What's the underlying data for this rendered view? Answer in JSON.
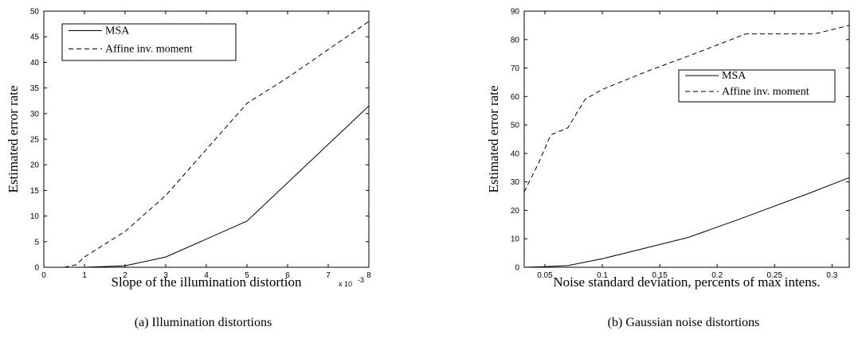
{
  "chart_data": [
    {
      "type": "line",
      "caption": "(a) Illumination distortions",
      "xlabel": "Slope of the illumination distortion",
      "x_multiplier_label": "x 10",
      "x_multiplier_exp": "-3",
      "ylabel": "Estimated error rate",
      "xlim": [
        0,
        8
      ],
      "ylim": [
        0,
        50
      ],
      "xticks": [
        0,
        1,
        2,
        3,
        4,
        5,
        6,
        7,
        8
      ],
      "yticks": [
        0,
        5,
        10,
        15,
        20,
        25,
        30,
        35,
        40,
        45,
        50
      ],
      "legend_position": "top-left",
      "grid": false,
      "series": [
        {
          "name": "MSA",
          "style": "solid",
          "x": [
            0.5,
            1,
            2,
            3,
            5,
            8
          ],
          "y": [
            0,
            0,
            0.3,
            2,
            9,
            31.5
          ]
        },
        {
          "name": "Affine inv. moment",
          "style": "dashed",
          "x": [
            0.5,
            0.8,
            1,
            2,
            3,
            4,
            5,
            6,
            8
          ],
          "y": [
            0,
            0.5,
            2,
            7,
            14,
            23,
            32,
            37,
            48
          ]
        }
      ]
    },
    {
      "type": "line",
      "caption": "(b) Gaussian noise distortions",
      "xlabel": "Noise standard deviation, percents of max intens.",
      "ylabel": "Estimated error rate",
      "xlim": [
        0.032,
        0.315
      ],
      "ylim": [
        0,
        90
      ],
      "xticks": [
        0.05,
        0.1,
        0.15,
        0.2,
        0.25,
        0.3
      ],
      "yticks": [
        0,
        10,
        20,
        30,
        40,
        50,
        60,
        70,
        80,
        90
      ],
      "legend_position": "upper-right",
      "grid": false,
      "series": [
        {
          "name": "MSA",
          "style": "solid",
          "x": [
            0.032,
            0.05,
            0.07,
            0.1,
            0.14,
            0.175,
            0.22,
            0.28,
            0.315
          ],
          "y": [
            0,
            0.2,
            0.6,
            3,
            7,
            10.5,
            17,
            26,
            31.5
          ]
        },
        {
          "name": "Affine inv. moment",
          "style": "dashed",
          "x": [
            0.032,
            0.045,
            0.055,
            0.07,
            0.085,
            0.1,
            0.14,
            0.18,
            0.225,
            0.25,
            0.285,
            0.315
          ],
          "y": [
            26.5,
            37,
            46.5,
            49,
            59,
            62.5,
            69,
            75,
            82,
            82,
            82,
            85
          ]
        }
      ]
    }
  ]
}
